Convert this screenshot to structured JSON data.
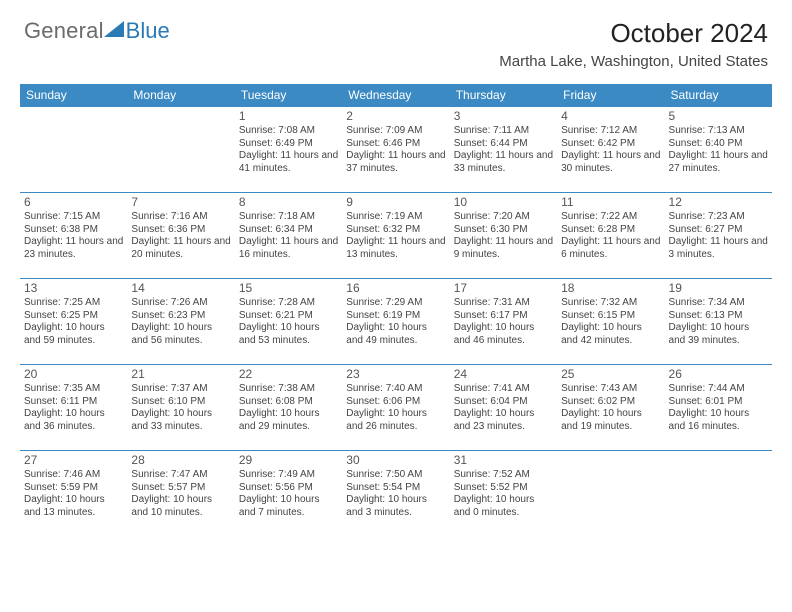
{
  "brand": {
    "word1": "General",
    "word2": "Blue"
  },
  "title": "October 2024",
  "location": "Martha Lake, Washington, United States",
  "colors": {
    "header_bg": "#3b8ac4",
    "header_fg": "#ffffff",
    "rule": "#3b8ac4",
    "logo_gray": "#6b6b6b",
    "logo_blue": "#2a7ab8",
    "text": "#444444",
    "title": "#222222",
    "bg": "#ffffff"
  },
  "day_headers": [
    "Sunday",
    "Monday",
    "Tuesday",
    "Wednesday",
    "Thursday",
    "Friday",
    "Saturday"
  ],
  "weeks": [
    [
      null,
      null,
      {
        "n": "1",
        "sr": "Sunrise: 7:08 AM",
        "ss": "Sunset: 6:49 PM",
        "dl": "Daylight: 11 hours and 41 minutes."
      },
      {
        "n": "2",
        "sr": "Sunrise: 7:09 AM",
        "ss": "Sunset: 6:46 PM",
        "dl": "Daylight: 11 hours and 37 minutes."
      },
      {
        "n": "3",
        "sr": "Sunrise: 7:11 AM",
        "ss": "Sunset: 6:44 PM",
        "dl": "Daylight: 11 hours and 33 minutes."
      },
      {
        "n": "4",
        "sr": "Sunrise: 7:12 AM",
        "ss": "Sunset: 6:42 PM",
        "dl": "Daylight: 11 hours and 30 minutes."
      },
      {
        "n": "5",
        "sr": "Sunrise: 7:13 AM",
        "ss": "Sunset: 6:40 PM",
        "dl": "Daylight: 11 hours and 27 minutes."
      }
    ],
    [
      {
        "n": "6",
        "sr": "Sunrise: 7:15 AM",
        "ss": "Sunset: 6:38 PM",
        "dl": "Daylight: 11 hours and 23 minutes."
      },
      {
        "n": "7",
        "sr": "Sunrise: 7:16 AM",
        "ss": "Sunset: 6:36 PM",
        "dl": "Daylight: 11 hours and 20 minutes."
      },
      {
        "n": "8",
        "sr": "Sunrise: 7:18 AM",
        "ss": "Sunset: 6:34 PM",
        "dl": "Daylight: 11 hours and 16 minutes."
      },
      {
        "n": "9",
        "sr": "Sunrise: 7:19 AM",
        "ss": "Sunset: 6:32 PM",
        "dl": "Daylight: 11 hours and 13 minutes."
      },
      {
        "n": "10",
        "sr": "Sunrise: 7:20 AM",
        "ss": "Sunset: 6:30 PM",
        "dl": "Daylight: 11 hours and 9 minutes."
      },
      {
        "n": "11",
        "sr": "Sunrise: 7:22 AM",
        "ss": "Sunset: 6:28 PM",
        "dl": "Daylight: 11 hours and 6 minutes."
      },
      {
        "n": "12",
        "sr": "Sunrise: 7:23 AM",
        "ss": "Sunset: 6:27 PM",
        "dl": "Daylight: 11 hours and 3 minutes."
      }
    ],
    [
      {
        "n": "13",
        "sr": "Sunrise: 7:25 AM",
        "ss": "Sunset: 6:25 PM",
        "dl": "Daylight: 10 hours and 59 minutes."
      },
      {
        "n": "14",
        "sr": "Sunrise: 7:26 AM",
        "ss": "Sunset: 6:23 PM",
        "dl": "Daylight: 10 hours and 56 minutes."
      },
      {
        "n": "15",
        "sr": "Sunrise: 7:28 AM",
        "ss": "Sunset: 6:21 PM",
        "dl": "Daylight: 10 hours and 53 minutes."
      },
      {
        "n": "16",
        "sr": "Sunrise: 7:29 AM",
        "ss": "Sunset: 6:19 PM",
        "dl": "Daylight: 10 hours and 49 minutes."
      },
      {
        "n": "17",
        "sr": "Sunrise: 7:31 AM",
        "ss": "Sunset: 6:17 PM",
        "dl": "Daylight: 10 hours and 46 minutes."
      },
      {
        "n": "18",
        "sr": "Sunrise: 7:32 AM",
        "ss": "Sunset: 6:15 PM",
        "dl": "Daylight: 10 hours and 42 minutes."
      },
      {
        "n": "19",
        "sr": "Sunrise: 7:34 AM",
        "ss": "Sunset: 6:13 PM",
        "dl": "Daylight: 10 hours and 39 minutes."
      }
    ],
    [
      {
        "n": "20",
        "sr": "Sunrise: 7:35 AM",
        "ss": "Sunset: 6:11 PM",
        "dl": "Daylight: 10 hours and 36 minutes."
      },
      {
        "n": "21",
        "sr": "Sunrise: 7:37 AM",
        "ss": "Sunset: 6:10 PM",
        "dl": "Daylight: 10 hours and 33 minutes."
      },
      {
        "n": "22",
        "sr": "Sunrise: 7:38 AM",
        "ss": "Sunset: 6:08 PM",
        "dl": "Daylight: 10 hours and 29 minutes."
      },
      {
        "n": "23",
        "sr": "Sunrise: 7:40 AM",
        "ss": "Sunset: 6:06 PM",
        "dl": "Daylight: 10 hours and 26 minutes."
      },
      {
        "n": "24",
        "sr": "Sunrise: 7:41 AM",
        "ss": "Sunset: 6:04 PM",
        "dl": "Daylight: 10 hours and 23 minutes."
      },
      {
        "n": "25",
        "sr": "Sunrise: 7:43 AM",
        "ss": "Sunset: 6:02 PM",
        "dl": "Daylight: 10 hours and 19 minutes."
      },
      {
        "n": "26",
        "sr": "Sunrise: 7:44 AM",
        "ss": "Sunset: 6:01 PM",
        "dl": "Daylight: 10 hours and 16 minutes."
      }
    ],
    [
      {
        "n": "27",
        "sr": "Sunrise: 7:46 AM",
        "ss": "Sunset: 5:59 PM",
        "dl": "Daylight: 10 hours and 13 minutes."
      },
      {
        "n": "28",
        "sr": "Sunrise: 7:47 AM",
        "ss": "Sunset: 5:57 PM",
        "dl": "Daylight: 10 hours and 10 minutes."
      },
      {
        "n": "29",
        "sr": "Sunrise: 7:49 AM",
        "ss": "Sunset: 5:56 PM",
        "dl": "Daylight: 10 hours and 7 minutes."
      },
      {
        "n": "30",
        "sr": "Sunrise: 7:50 AM",
        "ss": "Sunset: 5:54 PM",
        "dl": "Daylight: 10 hours and 3 minutes."
      },
      {
        "n": "31",
        "sr": "Sunrise: 7:52 AM",
        "ss": "Sunset: 5:52 PM",
        "dl": "Daylight: 10 hours and 0 minutes."
      },
      null,
      null
    ]
  ]
}
